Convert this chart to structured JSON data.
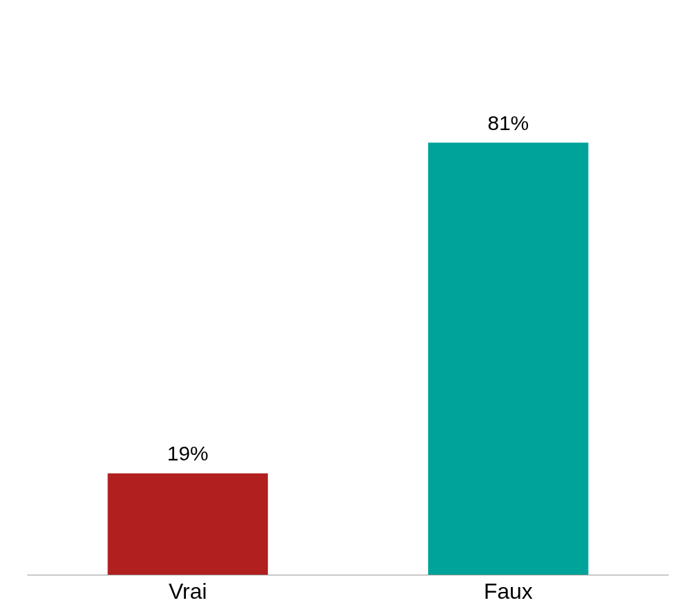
{
  "chart_data": {
    "type": "bar",
    "categories": [
      "Vrai",
      "Faux"
    ],
    "values": [
      19,
      81
    ],
    "colors": [
      "#b21f1f",
      "#00a39a"
    ],
    "value_labels": [
      "19%",
      "81%"
    ],
    "grid": false
  }
}
